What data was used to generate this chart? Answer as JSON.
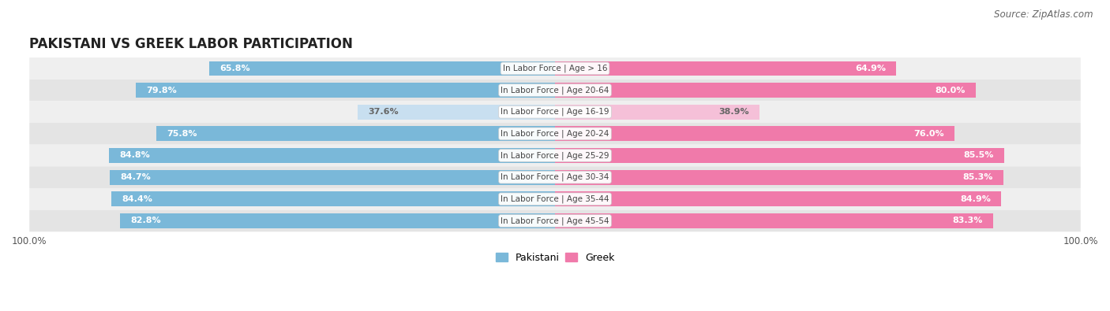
{
  "title": "PAKISTANI VS GREEK LABOR PARTICIPATION",
  "source": "Source: ZipAtlas.com",
  "categories": [
    "In Labor Force | Age > 16",
    "In Labor Force | Age 20-64",
    "In Labor Force | Age 16-19",
    "In Labor Force | Age 20-24",
    "In Labor Force | Age 25-29",
    "In Labor Force | Age 30-34",
    "In Labor Force | Age 35-44",
    "In Labor Force | Age 45-54"
  ],
  "pakistani_values": [
    65.8,
    79.8,
    37.6,
    75.8,
    84.8,
    84.7,
    84.4,
    82.8
  ],
  "greek_values": [
    64.9,
    80.0,
    38.9,
    76.0,
    85.5,
    85.3,
    84.9,
    83.3
  ],
  "pakistani_color_strong": "#7ab8d9",
  "pakistani_color_light": "#c8dff0",
  "greek_color_strong": "#f07aaa",
  "greek_color_light": "#f5c0d8",
  "label_color_white": "#ffffff",
  "label_color_dark": "#666666",
  "row_color_odd": "#efefef",
  "row_color_even": "#e4e4e4",
  "max_value": 100.0,
  "bar_height": 0.68,
  "legend_pakistani": "Pakistani",
  "legend_greek": "Greek",
  "title_fontsize": 12,
  "source_fontsize": 8.5,
  "label_fontsize": 8,
  "category_fontsize": 7.5,
  "light_threshold": 50.0
}
